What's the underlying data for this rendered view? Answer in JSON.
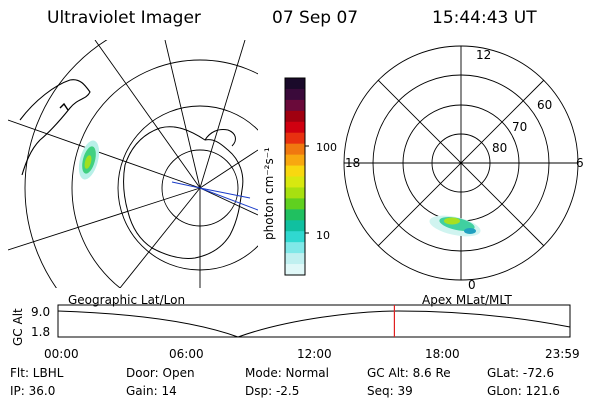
{
  "header": {
    "title": "Ultraviolet Imager",
    "date": "07 Sep 07",
    "time": "15:44:43 UT"
  },
  "colorbar": {
    "unit_label": "photon cm⁻²s⁻¹",
    "ticks": [
      "100",
      "10"
    ],
    "colors": [
      "#1a0a2a",
      "#3a0a3a",
      "#6a0a3a",
      "#a00010",
      "#d00010",
      "#e83010",
      "#f07810",
      "#f8a810",
      "#f8d810",
      "#d8e810",
      "#a8e010",
      "#60d020",
      "#20c060",
      "#10c0a0",
      "#30d8d0",
      "#80e8e8",
      "#c0f0f0",
      "#e0f8f8"
    ]
  },
  "polar_map": {
    "hour_labels": [
      "12",
      "18",
      "6",
      "0"
    ],
    "lat_labels": [
      "60",
      "70",
      "80"
    ],
    "frame_label": "Apex MLat/MLT"
  },
  "geo_map": {
    "frame_label": "Geographic Lat/Lon"
  },
  "timeline": {
    "ylabel": "GC Alt",
    "y_ticks": [
      "9.0",
      "1.8"
    ],
    "x_ticks": [
      "00:00",
      "06:00",
      "12:00",
      "18:00",
      "23:59"
    ],
    "current_time_fraction": 0.657
  },
  "footer": {
    "filter": "Flt: LBHL",
    "ip": "IP: 36.0",
    "door": "Door: Open",
    "gain": "Gain: 14",
    "mode": "Mode: Normal",
    "dsp": "Dsp:     -2.5",
    "gc_alt": "GC Alt: 8.6 Re",
    "seq": "Seq: 39",
    "glat": "GLat:  -72.6",
    "glon": "GLon:  121.6"
  }
}
